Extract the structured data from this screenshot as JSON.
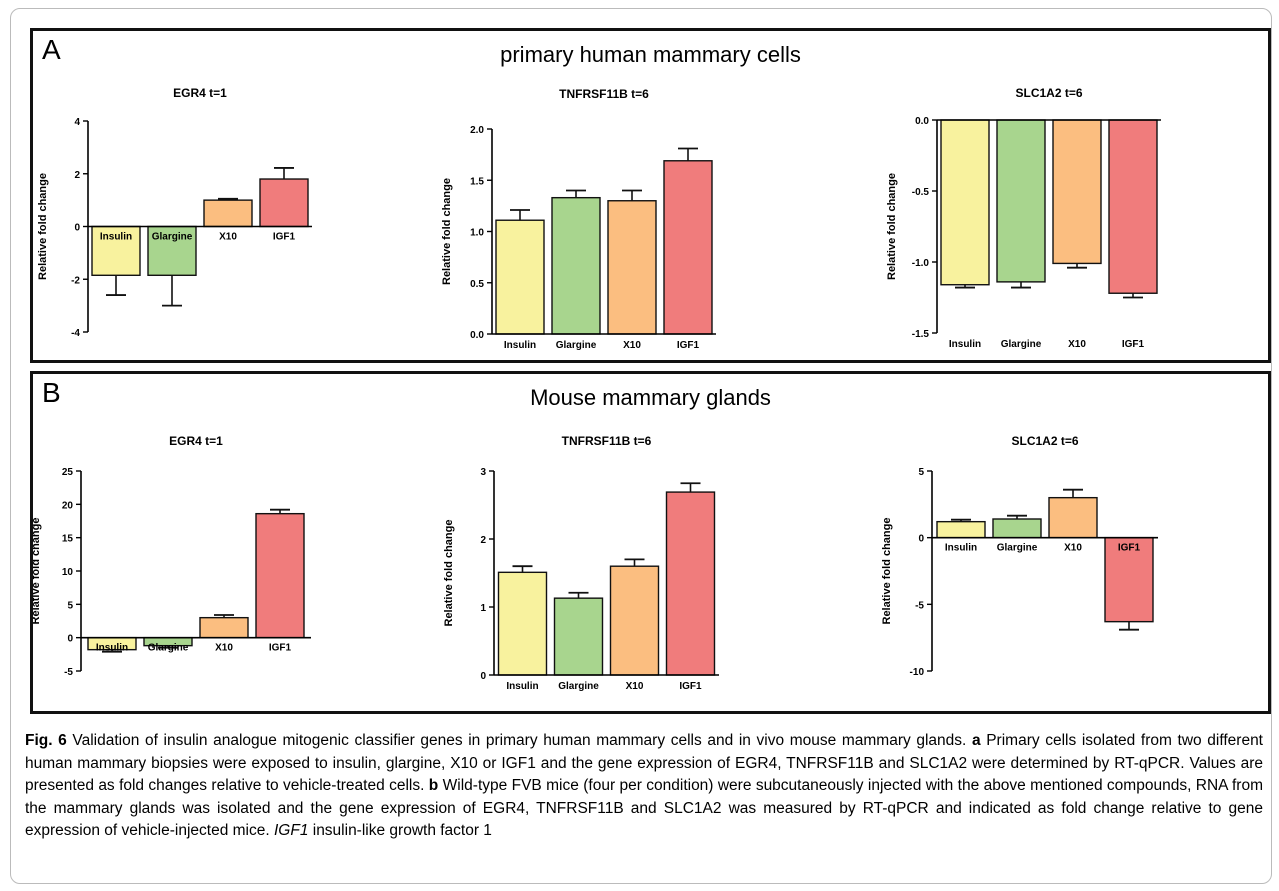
{
  "panels": [
    {
      "letter": "A",
      "title": "primary human mammary cells",
      "charts": [
        {
          "title": "EGR4 t=1",
          "ylabel": "Relative fold change",
          "ylim": [
            -4,
            4
          ],
          "ticks": [
            -4,
            -2,
            0,
            2,
            4
          ],
          "tick_labels": [
            "-4",
            "-2",
            "0",
            "2",
            "4"
          ]
        },
        {
          "title": "TNFRSF11B t=6",
          "ylabel": "Relative fold change",
          "ylim": [
            0,
            2.0
          ],
          "ticks": [
            0,
            0.5,
            1.0,
            1.5,
            2.0
          ],
          "tick_labels": [
            "0.0",
            "0.5",
            "1.0",
            "1.5",
            "2.0"
          ]
        },
        {
          "title": "SLC1A2 t=6",
          "ylabel": "Relative fold change",
          "ylim": [
            -1.5,
            0
          ],
          "ticks": [
            -1.5,
            -1.0,
            -0.5,
            0
          ],
          "tick_labels": [
            "-1.5",
            "-1.0",
            "-0.5",
            "0.0"
          ]
        }
      ]
    },
    {
      "letter": "B",
      "title": "Mouse mammary  glands",
      "charts": [
        {
          "title": "EGR4 t=1",
          "ylabel": "Relative fold change",
          "ylim": [
            -5,
            25
          ],
          "ticks": [
            -5,
            0,
            5,
            10,
            15,
            20,
            25
          ],
          "tick_labels": [
            "-5",
            "0",
            "5",
            "10",
            "15",
            "20",
            "25"
          ]
        },
        {
          "title": "TNFRSF11B t=6",
          "ylabel": "Relative fold change",
          "ylim": [
            0,
            3
          ],
          "ticks": [
            0,
            1,
            2,
            3
          ],
          "tick_labels": [
            "0",
            "1",
            "2",
            "3"
          ]
        },
        {
          "title": "SLC1A2 t=6",
          "ylabel": "Relative fold change",
          "ylim": [
            -10,
            5
          ],
          "ticks": [
            -10,
            -5,
            0,
            5
          ],
          "tick_labels": [
            "-10",
            "-5",
            "0",
            "5"
          ]
        }
      ]
    }
  ],
  "chart_data": [
    {
      "type": "bar",
      "title": "EGR4 t=1",
      "ylabel": "Relative fold change",
      "ylim": [
        -4,
        4
      ],
      "categories": [
        "Insulin",
        "Glargine",
        "X10",
        "IGF1"
      ],
      "values": [
        -1.85,
        -1.85,
        1.0,
        1.8
      ],
      "error": [
        0.75,
        1.15,
        0.05,
        0.42
      ],
      "colors": [
        "#f8f29e",
        "#a8d58e",
        "#fbbe80",
        "#f07c7c"
      ]
    },
    {
      "type": "bar",
      "title": "TNFRSF11B t=6",
      "ylabel": "Relative fold change",
      "ylim": [
        0,
        2.0
      ],
      "categories": [
        "Insulin",
        "Glargine",
        "X10",
        "IGF1"
      ],
      "values": [
        1.11,
        1.33,
        1.3,
        1.69
      ],
      "error": [
        0.1,
        0.07,
        0.1,
        0.12
      ],
      "colors": [
        "#f8f29e",
        "#a8d58e",
        "#fbbe80",
        "#f07c7c"
      ]
    },
    {
      "type": "bar",
      "title": "SLC1A2 t=6",
      "ylabel": "Relative fold change",
      "ylim": [
        -1.5,
        0
      ],
      "categories": [
        "Insulin",
        "Glargine",
        "X10",
        "IGF1"
      ],
      "values": [
        -1.16,
        -1.14,
        -1.01,
        -1.22
      ],
      "error": [
        0.02,
        0.04,
        0.03,
        0.03
      ],
      "colors": [
        "#f8f29e",
        "#a8d58e",
        "#fbbe80",
        "#f07c7c"
      ]
    },
    {
      "type": "bar",
      "title": "EGR4 t=1",
      "ylabel": "Relative fold change",
      "ylim": [
        -5,
        25
      ],
      "categories": [
        "Insulin",
        "Glargine",
        "X10",
        "IGF1"
      ],
      "values": [
        -1.8,
        -1.2,
        3.0,
        18.6
      ],
      "error": [
        0.3,
        0.3,
        0.4,
        0.6
      ],
      "colors": [
        "#f8f29e",
        "#a8d58e",
        "#fbbe80",
        "#f07c7c"
      ]
    },
    {
      "type": "bar",
      "title": "TNFRSF11B t=6",
      "ylabel": "Relative fold change",
      "ylim": [
        0,
        3
      ],
      "categories": [
        "Insulin",
        "Glargine",
        "X10",
        "IGF1"
      ],
      "values": [
        1.51,
        1.13,
        1.6,
        2.69
      ],
      "error": [
        0.09,
        0.08,
        0.1,
        0.13
      ],
      "colors": [
        "#f8f29e",
        "#a8d58e",
        "#fbbe80",
        "#f07c7c"
      ]
    },
    {
      "type": "bar",
      "title": "SLC1A2 t=6",
      "ylabel": "Relative fold change",
      "ylim": [
        -10,
        5
      ],
      "categories": [
        "Insulin",
        "Glargine",
        "X10",
        "IGF1"
      ],
      "values": [
        1.2,
        1.4,
        3.0,
        -6.3
      ],
      "error": [
        0.15,
        0.25,
        0.6,
        0.6
      ],
      "colors": [
        "#f8f29e",
        "#a8d58e",
        "#fbbe80",
        "#f07c7c"
      ]
    }
  ],
  "caption": {
    "fig_label": "Fig. 6",
    "intro": " Validation of insulin analogue mitogenic classifier genes in primary human mammary cells and in vivo mouse mammary glands. ",
    "a_label": "a",
    "a_text": " Primary cells isolated from two different human mammary biopsies were exposed to insulin, glargine, X10 or IGF1 and the gene expression of EGR4, TNFRSF11B and SLC1A2 were determined by RT-qPCR. Values are presented as fold changes relative to vehicle-treated cells. ",
    "b_label": "b",
    "b_text": " Wild-type FVB mice (four per condition) were subcutaneously injected with the above mentioned compounds, RNA from the mammary glands was isolated and the gene expression of EGR4, TNFRSF11B and SLC1A2 was measured by RT-qPCR and indicated as fold change relative to gene expression of vehicle-injected mice. ",
    "abbr_term": "IGF1",
    "abbr_def": " insulin-like growth factor 1"
  }
}
